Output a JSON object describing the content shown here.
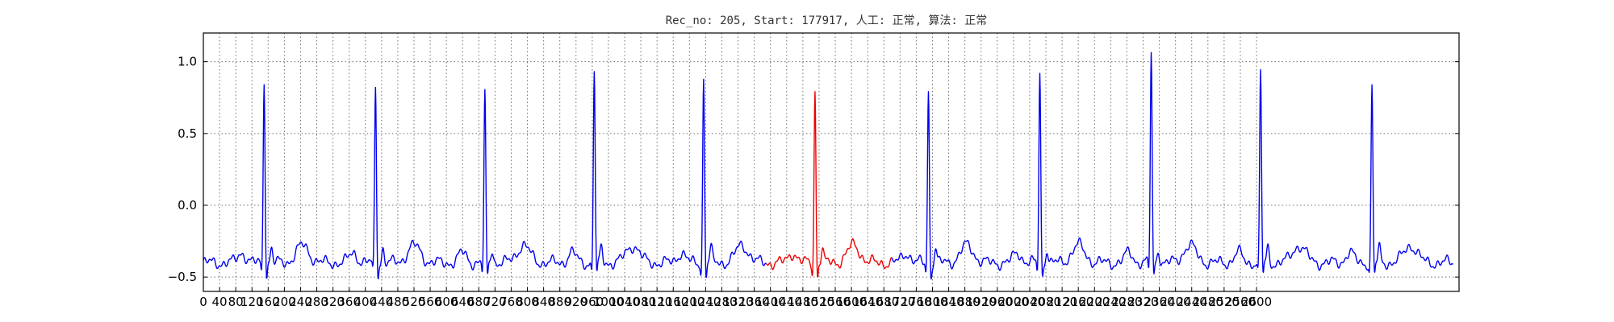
{
  "chart_data": {
    "type": "line",
    "title": "Rec_no: 205, Start: 177917, 人工: 正常, 算法: 正常",
    "xlabel": "",
    "ylabel": "",
    "xlim": [
      0,
      3100
    ],
    "ylim": [
      -0.6,
      1.2
    ],
    "grid": true,
    "yticks": [
      1.0,
      0.5,
      0.0,
      -0.5
    ],
    "ytick_labels": [
      "1.0",
      "0.5",
      "0.0",
      "−0.5"
    ],
    "xticks": [
      0,
      40,
      80,
      120,
      160,
      200,
      240,
      280,
      320,
      360,
      400,
      440,
      480,
      520,
      560,
      600,
      640,
      680,
      720,
      760,
      800,
      840,
      880,
      920,
      960,
      1000,
      1040,
      1080,
      1120,
      1160,
      1200,
      1240,
      1280,
      1320,
      1360,
      1400,
      1440,
      1480,
      1520,
      1560,
      1600,
      1640,
      1680,
      1720,
      1760,
      1800,
      1840,
      1880,
      1920,
      1960,
      2000,
      2040,
      2080,
      2120,
      2160,
      2200,
      2240,
      2280,
      2320,
      2360,
      2400,
      2440,
      2480,
      2520,
      2560,
      2600
    ],
    "baseline": -0.4,
    "x_end": 3085,
    "highlight_range": [
      1390,
      1700
    ],
    "beats": [
      {
        "x": 150,
        "peak": 0.88
      },
      {
        "x": 425,
        "peak": 0.83
      },
      {
        "x": 695,
        "peak": 0.76
      },
      {
        "x": 965,
        "peak": 0.95
      },
      {
        "x": 1235,
        "peak": 0.88
      },
      {
        "x": 1510,
        "peak": 0.8
      },
      {
        "x": 1790,
        "peak": 0.8
      },
      {
        "x": 2065,
        "peak": 0.92
      },
      {
        "x": 2340,
        "peak": 1.06
      },
      {
        "x": 2610,
        "peak": 0.93
      },
      {
        "x": 2885,
        "peak": 0.83
      }
    ],
    "series": [
      {
        "color": "#0000ee",
        "role": "signal"
      },
      {
        "color": "#ee0000",
        "role": "highlight"
      }
    ]
  }
}
